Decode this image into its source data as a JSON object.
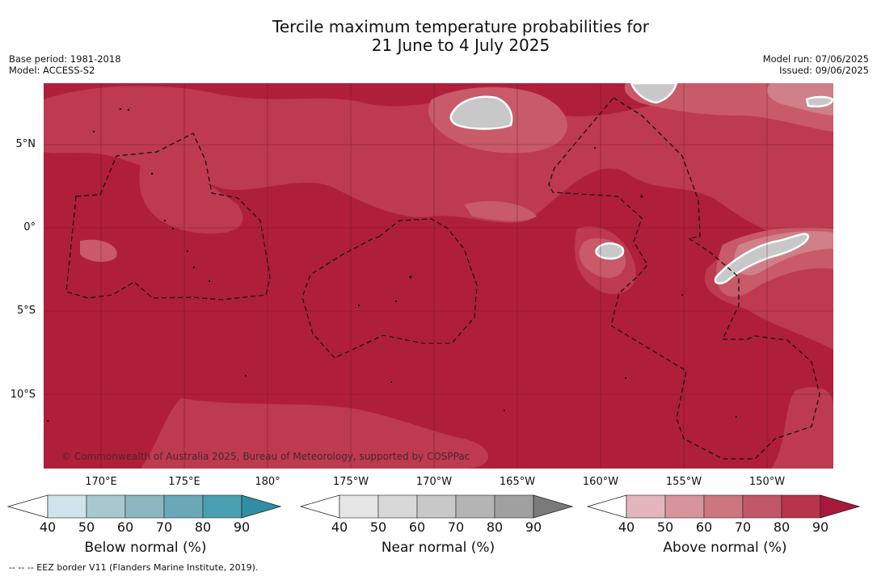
{
  "title": {
    "line1": "Tercile maximum temperature probabilities for",
    "line2": "21 June to 4 July 2025"
  },
  "meta": {
    "base_period": "Base period: 1981-2018",
    "model": "Model: ACCESS-S2",
    "model_run": "Model run: 07/06/2025",
    "issued": "Issued: 09/06/2025"
  },
  "map": {
    "lat_labels": [
      "5°N",
      "0°",
      "5°S",
      "10°S"
    ],
    "lon_labels": [
      "170°E",
      "175°E",
      "180°",
      "175°W",
      "170°W",
      "165°W",
      "160°W",
      "155°W",
      "150°W"
    ],
    "copyright": "© Commonwealth of Australia 2025, Bureau of Meteorology, supported by COSPPac",
    "colors": {
      "above_90": "#b01f3a",
      "above_80": "#bd3a50",
      "above_70": "#c85a6a",
      "above_60": "#d08088",
      "near_60": "#c8c8c8"
    }
  },
  "colorbars": [
    {
      "title": "Below normal (%)",
      "ticks": [
        "40",
        "50",
        "60",
        "70",
        "80",
        "90"
      ],
      "colors": [
        "#ffffff",
        "#cfe3ea",
        "#a9c8ce",
        "#8cb6c0",
        "#6aa9b7",
        "#4a9fb0",
        "#2f8ea3"
      ]
    },
    {
      "title": "Near normal (%)",
      "ticks": [
        "40",
        "50",
        "60",
        "70",
        "80",
        "90"
      ],
      "colors": [
        "#ffffff",
        "#e6e6e6",
        "#d8d8d8",
        "#c8c8c8",
        "#b4b4b4",
        "#a0a0a0",
        "#7a7a7a"
      ]
    },
    {
      "title": "Above normal (%)",
      "ticks": [
        "40",
        "50",
        "60",
        "70",
        "80",
        "90"
      ],
      "colors": [
        "#ffffff",
        "#e3b6bd",
        "#d8949c",
        "#cc7680",
        "#c0586a",
        "#b7344b",
        "#a8183a"
      ]
    }
  ],
  "footnote": "-- -- -- EEZ border V11 (Flanders Marine Institute, 2019)."
}
